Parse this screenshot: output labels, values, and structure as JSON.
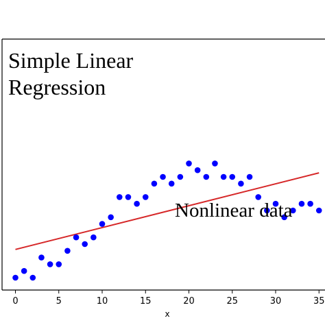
{
  "chart_data": {
    "type": "scatter",
    "title": "",
    "xlabel": "x",
    "ylabel": "",
    "xlim": [
      -1,
      35
    ],
    "ylim": [
      -0.5,
      10.5
    ],
    "xticks": [
      0,
      5,
      10,
      15,
      20,
      25,
      30,
      35
    ],
    "grid": false,
    "annotations": [
      {
        "text": "Simple Linear",
        "position": "top-left"
      },
      {
        "text": "Regression",
        "position": "top-left"
      },
      {
        "text": "Nonlinear data",
        "position": "lower-right"
      }
    ],
    "points_color": "#0000ff",
    "line_color": "#d62728",
    "points": [
      {
        "x": 0,
        "y": 0.0
      },
      {
        "x": 1,
        "y": 0.5
      },
      {
        "x": 2,
        "y": 0.0
      },
      {
        "x": 3,
        "y": 1.5
      },
      {
        "x": 4,
        "y": 1.0
      },
      {
        "x": 5,
        "y": 1.0
      },
      {
        "x": 6,
        "y": 2.0
      },
      {
        "x": 7,
        "y": 3.0
      },
      {
        "x": 8,
        "y": 2.5
      },
      {
        "x": 9,
        "y": 3.0
      },
      {
        "x": 10,
        "y": 4.0
      },
      {
        "x": 11,
        "y": 4.5
      },
      {
        "x": 12,
        "y": 6.0
      },
      {
        "x": 13,
        "y": 6.0
      },
      {
        "x": 14,
        "y": 5.5
      },
      {
        "x": 15,
        "y": 6.0
      },
      {
        "x": 16,
        "y": 7.0
      },
      {
        "x": 17,
        "y": 7.5
      },
      {
        "x": 18,
        "y": 7.0
      },
      {
        "x": 19,
        "y": 7.5
      },
      {
        "x": 20,
        "y": 8.5
      },
      {
        "x": 21,
        "y": 8.0
      },
      {
        "x": 22,
        "y": 7.5
      },
      {
        "x": 23,
        "y": 8.5
      },
      {
        "x": 24,
        "y": 7.5
      },
      {
        "x": 25,
        "y": 7.5
      },
      {
        "x": 26,
        "y": 7.0
      },
      {
        "x": 27,
        "y": 7.5
      },
      {
        "x": 28,
        "y": 6.0
      },
      {
        "x": 29,
        "y": 5.0
      },
      {
        "x": 30,
        "y": 5.5
      },
      {
        "x": 31,
        "y": 4.5
      },
      {
        "x": 32,
        "y": 5.0
      },
      {
        "x": 33,
        "y": 5.5
      },
      {
        "x": 34,
        "y": 5.5
      },
      {
        "x": 35,
        "y": 5.0
      }
    ],
    "fit_line": {
      "x": [
        0,
        35
      ],
      "y": [
        2.1,
        7.8
      ]
    }
  }
}
